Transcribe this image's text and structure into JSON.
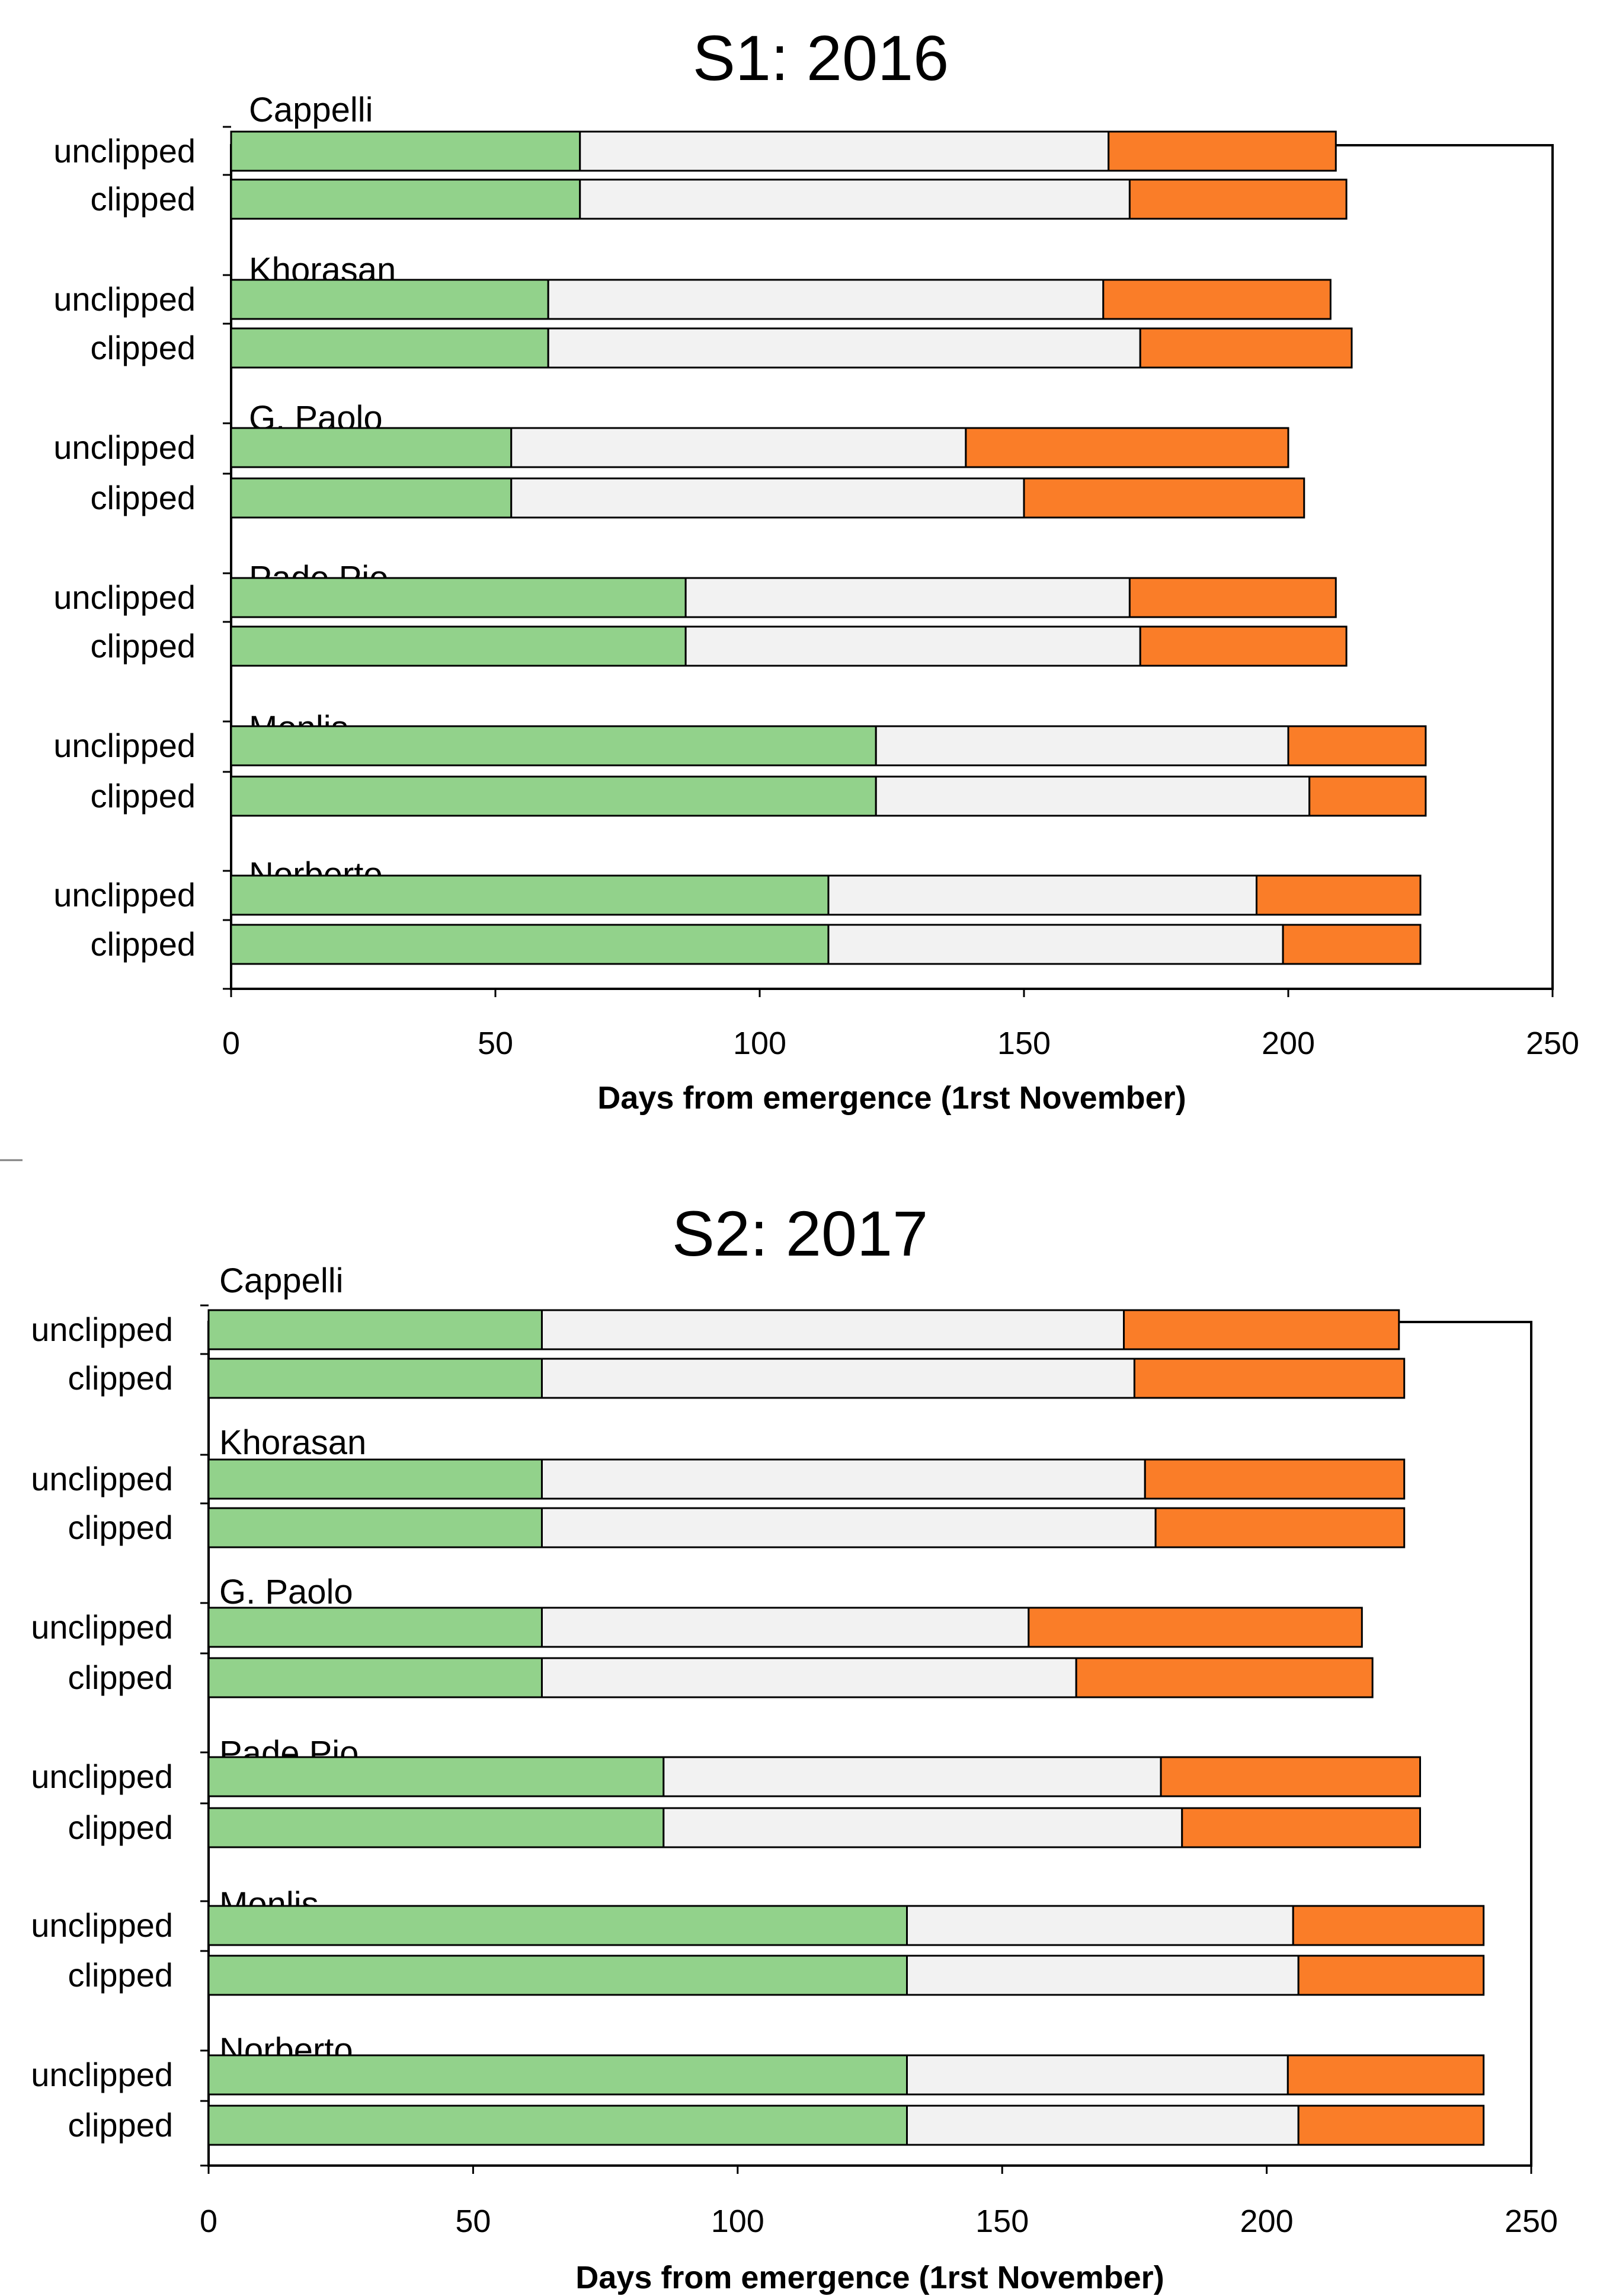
{
  "chart_data": [
    {
      "type": "bar",
      "stacked": true,
      "orientation": "horizontal",
      "title": "S1: 2016",
      "xlabel": "Days from emergence (1rst November)",
      "xlim": [
        0,
        250
      ],
      "xticks": [
        0,
        50,
        100,
        150,
        200,
        250
      ],
      "xtick_labels": [
        "0",
        "50",
        "100",
        "150",
        "200",
        "250"
      ],
      "grid": false,
      "legend": "none",
      "segment_colors": [
        "#92d28b",
        "#f2f2f2",
        "#fa7d28"
      ],
      "groups": [
        {
          "variety": "Cappelli",
          "bars": [
            {
              "treatment": "unclipped",
              "segments": [
                66,
                100,
                43
              ]
            },
            {
              "treatment": "clipped",
              "segments": [
                66,
                104,
                41
              ]
            }
          ]
        },
        {
          "variety": "Khorasan",
          "bars": [
            {
              "treatment": "unclipped",
              "segments": [
                60,
                105,
                43
              ]
            },
            {
              "treatment": "clipped",
              "segments": [
                60,
                112,
                40
              ]
            }
          ]
        },
        {
          "variety": "G. Paolo",
          "bars": [
            {
              "treatment": "unclipped",
              "segments": [
                53,
                86,
                61
              ]
            },
            {
              "treatment": "clipped",
              "segments": [
                53,
                97,
                53
              ]
            }
          ]
        },
        {
          "variety": "Pade Pio",
          "bars": [
            {
              "treatment": "unclipped",
              "segments": [
                86,
                84,
                39
              ]
            },
            {
              "treatment": "clipped",
              "segments": [
                86,
                86,
                39
              ]
            }
          ]
        },
        {
          "variety": "Monlis",
          "bars": [
            {
              "treatment": "unclipped",
              "segments": [
                122,
                78,
                26
              ]
            },
            {
              "treatment": "clipped",
              "segments": [
                122,
                82,
                22
              ]
            }
          ]
        },
        {
          "variety": "Norberto",
          "bars": [
            {
              "treatment": "unclipped",
              "segments": [
                113,
                81,
                31
              ]
            },
            {
              "treatment": "clipped",
              "segments": [
                113,
                86,
                26
              ]
            }
          ]
        }
      ]
    },
    {
      "type": "bar",
      "stacked": true,
      "orientation": "horizontal",
      "title": "S2: 2017",
      "xlabel": "Days from emergence (1rst November)",
      "xlim": [
        0,
        250
      ],
      "xticks": [
        0,
        50,
        100,
        150,
        200,
        250
      ],
      "xtick_labels": [
        "0",
        "50",
        "100",
        "150",
        "200",
        "250"
      ],
      "grid": false,
      "legend": "none",
      "segment_colors": [
        "#92d28b",
        "#f2f2f2",
        "#fa7d28"
      ],
      "groups": [
        {
          "variety": "Cappelli",
          "bars": [
            {
              "treatment": "unclipped",
              "segments": [
                63,
                110,
                52
              ]
            },
            {
              "treatment": "clipped",
              "segments": [
                63,
                112,
                51
              ]
            }
          ]
        },
        {
          "variety": "Khorasan",
          "bars": [
            {
              "treatment": "unclipped",
              "segments": [
                63,
                114,
                49
              ]
            },
            {
              "treatment": "clipped",
              "segments": [
                63,
                116,
                47
              ]
            }
          ]
        },
        {
          "variety": "G. Paolo",
          "bars": [
            {
              "treatment": "unclipped",
              "segments": [
                63,
                92,
                63
              ]
            },
            {
              "treatment": "clipped",
              "segments": [
                63,
                101,
                56
              ]
            }
          ]
        },
        {
          "variety": "Pade Pio",
          "bars": [
            {
              "treatment": "unclipped",
              "segments": [
                86,
                94,
                49
              ]
            },
            {
              "treatment": "clipped",
              "segments": [
                86,
                98,
                45
              ]
            }
          ]
        },
        {
          "variety": "Monlis",
          "bars": [
            {
              "treatment": "unclipped",
              "segments": [
                132,
                73,
                36
              ]
            },
            {
              "treatment": "clipped",
              "segments": [
                132,
                74,
                35
              ]
            }
          ]
        },
        {
          "variety": "Norberto",
          "bars": [
            {
              "treatment": "unclipped",
              "segments": [
                132,
                72,
                37
              ]
            },
            {
              "treatment": "clipped",
              "segments": [
                132,
                74,
                35
              ]
            }
          ]
        }
      ]
    }
  ]
}
